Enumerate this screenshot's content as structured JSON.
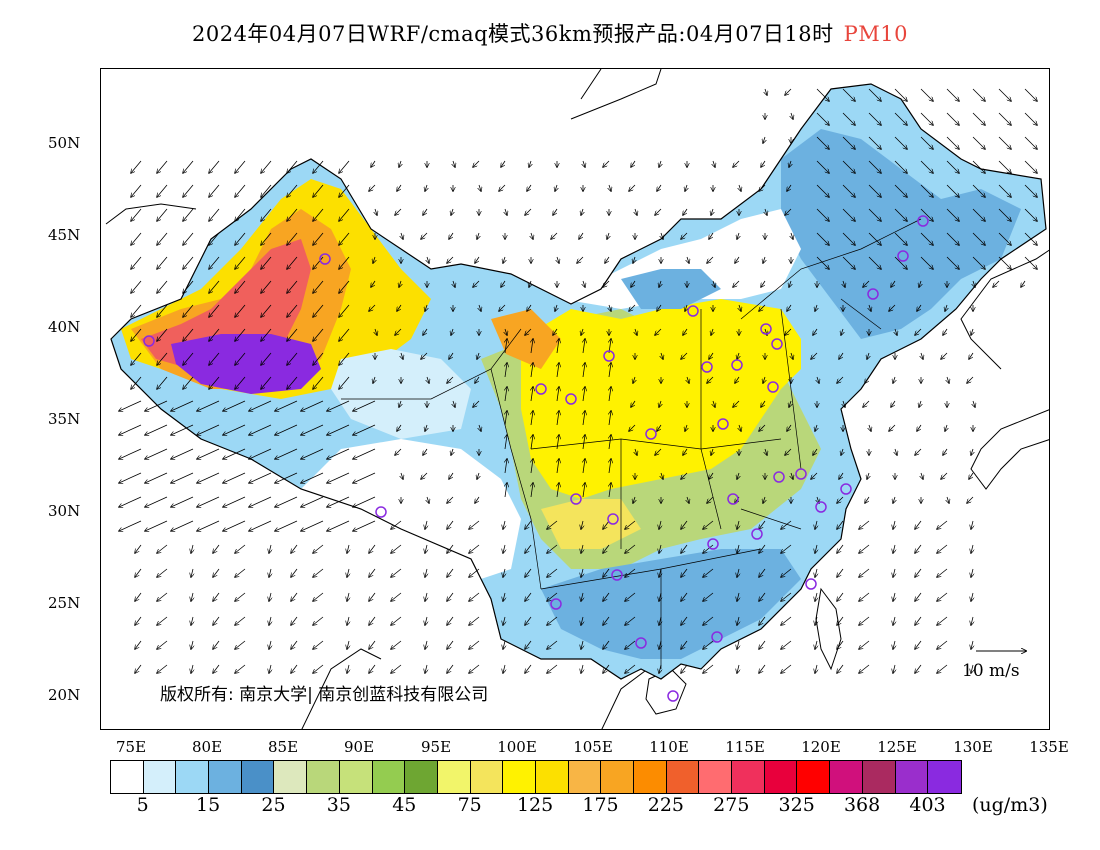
{
  "title": {
    "main": "2024年04月07日WRF/cmaq模式36km预报产品:04月07日18时",
    "variable": "PM10",
    "variable_color": "#e8453c"
  },
  "axes": {
    "lat_labels": [
      "50N",
      "45N",
      "40N",
      "35N",
      "30N",
      "25N",
      "20N"
    ],
    "lon_labels": [
      "75E",
      "80E",
      "85E",
      "90E",
      "95E",
      "100E",
      "105E",
      "110E",
      "115E",
      "120E",
      "125E",
      "130E",
      "135E"
    ]
  },
  "copyright": "版权所有: 南京大学| 南京创蓝科技有限公司",
  "wind_reference": {
    "label": "10 m/s"
  },
  "legend": {
    "colors": [
      "#ffffff",
      "#d4effb",
      "#9cd8f5",
      "#6cb1e0",
      "#4a90c8",
      "#dde8bd",
      "#b9d77a",
      "#c6e17a",
      "#94cc50",
      "#6ea632",
      "#f2f56a",
      "#f4e45c",
      "#fff200",
      "#fce000",
      "#f8b545",
      "#f8a522",
      "#fc8c00",
      "#f0602c",
      "#ff6c70",
      "#f0305c",
      "#e8003c",
      "#ff0000",
      "#d0107c",
      "#aa2a60",
      "#9a2ecc",
      "#8a2ae0"
    ],
    "labels": [
      "5",
      "15",
      "25",
      "35",
      "45",
      "75",
      "125",
      "175",
      "225",
      "275",
      "325",
      "368",
      "403"
    ],
    "unit": "(ug/m3)"
  }
}
